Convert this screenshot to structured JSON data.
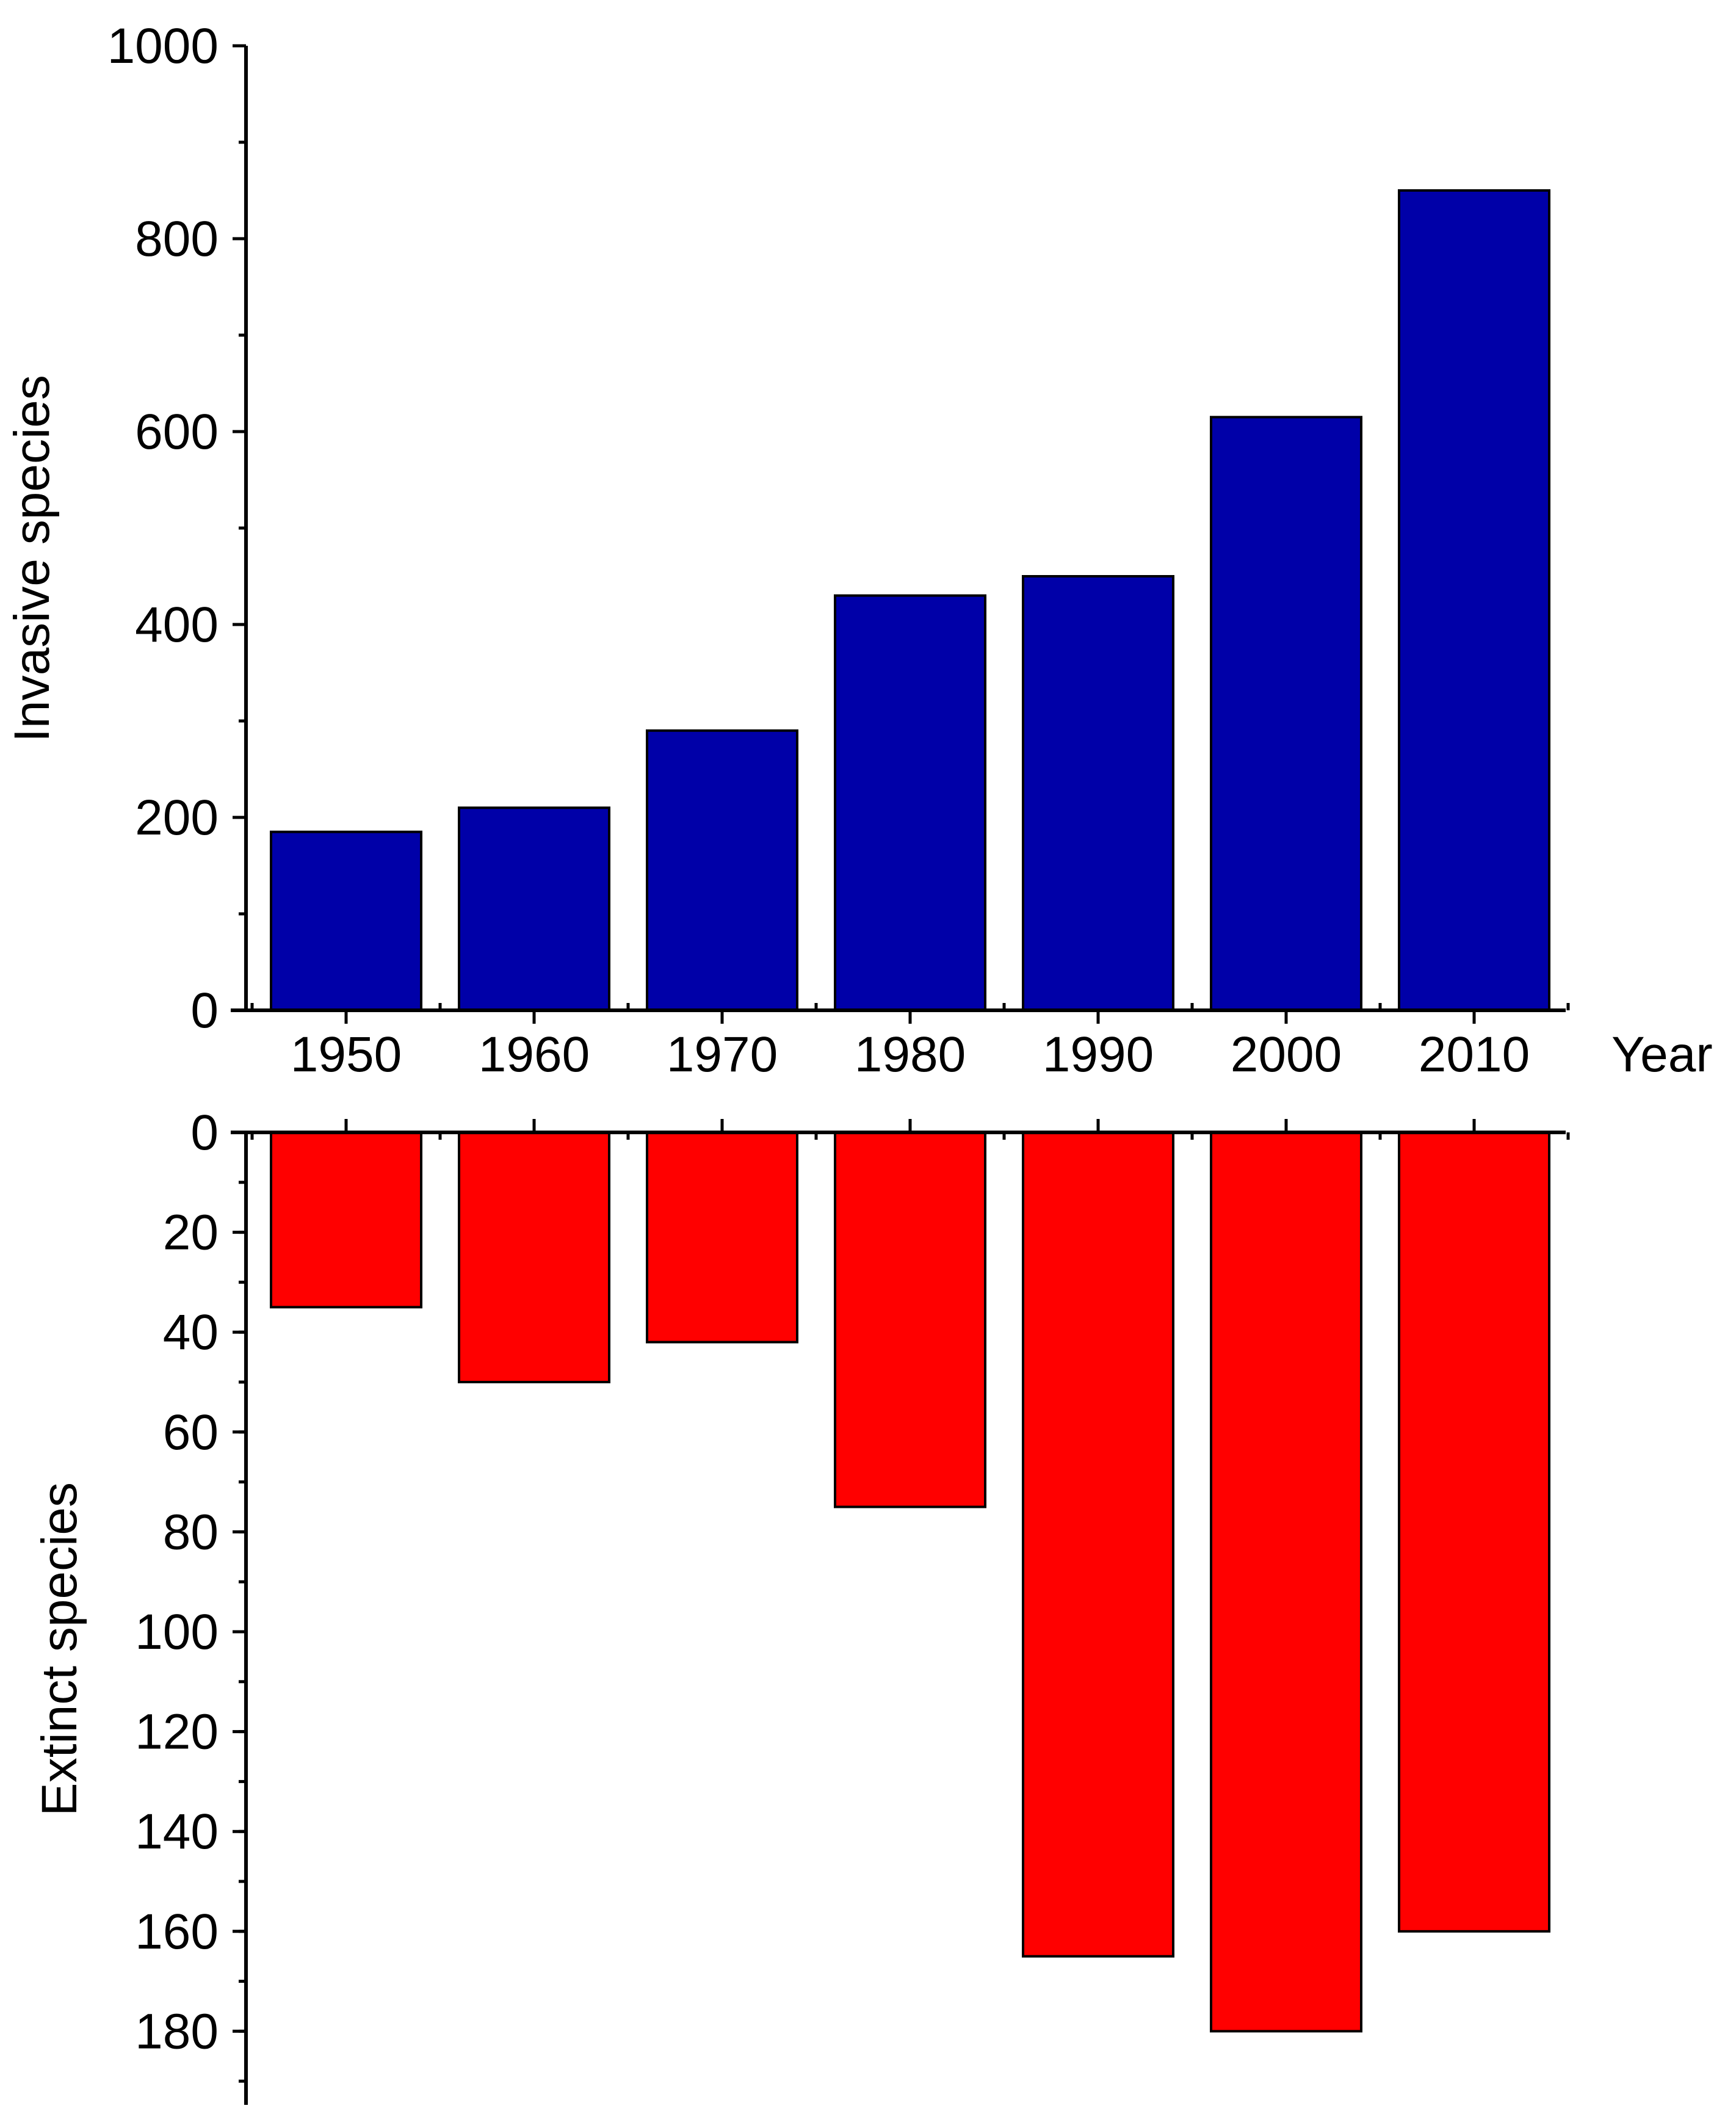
{
  "chart_data": {
    "type": "bar",
    "x": {
      "label": "Year",
      "categories": [
        "1950",
        "1960",
        "1970",
        "1980",
        "1990",
        "2000",
        "2010"
      ]
    },
    "panels": [
      {
        "name": "top",
        "ylabel": "Invasive species",
        "ylim": [
          0,
          1000
        ],
        "yticks": [
          "0",
          "200",
          "400",
          "600",
          "800",
          "1000"
        ],
        "minor_tick_step": 100,
        "direction": "up",
        "color": "#0000a8",
        "values": [
          185,
          210,
          290,
          430,
          450,
          615,
          850
        ]
      },
      {
        "name": "bottom",
        "ylabel": "Extinct species",
        "ylim": [
          0,
          190
        ],
        "yticks": [
          "0",
          "20",
          "40",
          "60",
          "80",
          "100",
          "120",
          "140",
          "160",
          "180"
        ],
        "minor_tick_step": 10,
        "direction": "down",
        "color": "#ff0000",
        "values": [
          35,
          50,
          42,
          75,
          165,
          180,
          160
        ]
      }
    ]
  }
}
